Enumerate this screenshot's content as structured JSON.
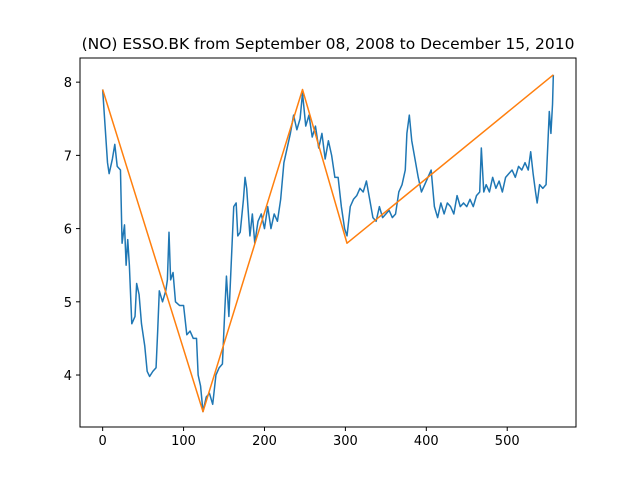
{
  "chart_data": {
    "type": "line",
    "title": "(NO) ESSO.BK from September 08, 2008 to December 15, 2010",
    "xlim": [
      -28,
      585
    ],
    "ylim": [
      3.29,
      8.33
    ],
    "xticks": [
      0,
      100,
      200,
      300,
      400,
      500
    ],
    "yticks": [
      4,
      5,
      6,
      7,
      8
    ],
    "series": [
      {
        "color": "#1f77b4",
        "x": [
          0,
          3,
          6,
          8,
          12,
          15,
          18,
          22,
          24,
          27,
          29,
          31,
          33,
          36,
          40,
          42,
          45,
          48,
          52,
          55,
          58,
          62,
          66,
          68,
          70,
          74,
          78,
          80,
          82,
          84,
          87,
          90,
          95,
          100,
          104,
          108,
          112,
          116,
          118,
          121,
          124,
          128,
          132,
          136,
          140,
          144,
          148,
          151,
          153,
          156,
          158,
          160,
          162,
          165,
          167,
          170,
          174,
          176,
          178,
          182,
          185,
          188,
          192,
          196,
          200,
          204,
          208,
          212,
          216,
          220,
          224,
          228,
          232,
          236,
          240,
          244,
          247,
          251,
          255,
          259,
          263,
          267,
          271,
          275,
          279,
          283,
          287,
          291,
          295,
          299,
          302,
          306,
          310,
          314,
          318,
          322,
          326,
          330,
          334,
          338,
          342,
          346,
          350,
          354,
          358,
          362,
          366,
          370,
          374,
          376,
          379,
          382,
          386,
          390,
          394,
          398,
          402,
          406,
          410,
          414,
          418,
          422,
          426,
          430,
          434,
          438,
          442,
          446,
          450,
          454,
          458,
          462,
          466,
          468,
          471,
          474,
          478,
          482,
          486,
          490,
          494,
          498,
          502,
          506,
          510,
          514,
          518,
          522,
          526,
          529,
          532,
          535,
          537,
          540,
          544,
          548,
          550,
          552,
          554,
          556,
          557
        ],
        "values": [
          7.9,
          7.4,
          6.9,
          6.75,
          6.95,
          7.15,
          6.85,
          6.8,
          5.8,
          6.05,
          5.5,
          5.85,
          5.5,
          4.7,
          4.8,
          5.25,
          5.1,
          4.7,
          4.4,
          4.05,
          3.98,
          4.05,
          4.1,
          4.6,
          5.15,
          5.0,
          5.15,
          5.3,
          5.95,
          5.3,
          5.4,
          5.0,
          4.95,
          4.95,
          4.55,
          4.6,
          4.5,
          4.5,
          4.0,
          3.85,
          3.5,
          3.7,
          3.75,
          3.6,
          4.0,
          4.1,
          4.15,
          4.9,
          5.35,
          4.8,
          5.3,
          5.8,
          6.3,
          6.35,
          5.9,
          5.95,
          6.4,
          6.7,
          6.55,
          5.9,
          6.2,
          5.8,
          6.1,
          6.2,
          6.0,
          6.3,
          6.0,
          6.2,
          6.1,
          6.4,
          6.9,
          7.1,
          7.3,
          7.55,
          7.35,
          7.5,
          7.85,
          7.4,
          7.55,
          7.25,
          7.4,
          7.1,
          7.3,
          6.95,
          7.2,
          7.0,
          6.7,
          6.7,
          6.3,
          6.0,
          5.9,
          6.3,
          6.4,
          6.45,
          6.55,
          6.5,
          6.65,
          6.4,
          6.15,
          6.1,
          6.3,
          6.15,
          6.2,
          6.25,
          6.15,
          6.2,
          6.5,
          6.6,
          6.8,
          7.3,
          7.55,
          7.2,
          6.95,
          6.7,
          6.5,
          6.6,
          6.7,
          6.8,
          6.3,
          6.15,
          6.35,
          6.2,
          6.35,
          6.3,
          6.2,
          6.45,
          6.3,
          6.35,
          6.3,
          6.4,
          6.3,
          6.45,
          6.5,
          7.1,
          6.5,
          6.6,
          6.5,
          6.7,
          6.55,
          6.65,
          6.5,
          6.7,
          6.75,
          6.8,
          6.7,
          6.85,
          6.8,
          6.9,
          6.8,
          7.05,
          6.75,
          6.5,
          6.35,
          6.6,
          6.55,
          6.6,
          7.1,
          7.6,
          7.3,
          7.7,
          8.1
        ]
      },
      {
        "color": "#ff7f0e",
        "x": [
          0,
          124,
          247,
          302,
          557
        ],
        "values": [
          7.9,
          3.5,
          7.9,
          5.8,
          8.1
        ]
      }
    ]
  }
}
